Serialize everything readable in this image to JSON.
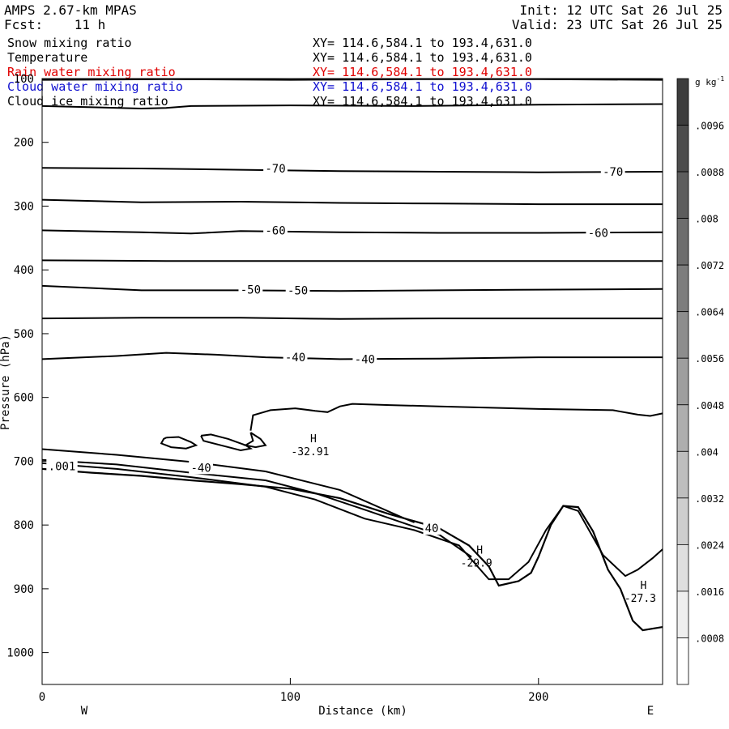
{
  "header": {
    "model": "AMPS 2.67-km MPAS",
    "forecast": "Fcst:    11 h",
    "init": "Init: 12 UTC Sat 26 Jul 25",
    "valid": "Valid: 23 UTC Sat 26 Jul 25"
  },
  "fields": [
    {
      "name": "Snow mixing ratio",
      "xy": "XY= 114.6,584.1 to 193.4,631.0",
      "color": "#000000"
    },
    {
      "name": "Temperature",
      "xy": "XY= 114.6,584.1 to 193.4,631.0",
      "color": "#000000"
    },
    {
      "name": "Rain water mixing ratio",
      "xy": "XY= 114.6,584.1 to 193.4,631.0",
      "color": "#e00000"
    },
    {
      "name": "Cloud water mixing ratio",
      "xy": "XY= 114.6,584.1 to 193.4,631.0",
      "color": "#1010d0"
    },
    {
      "name": "Cloud ice mixing ratio",
      "xy": "XY= 114.6,584.1 to 193.4,631.0",
      "color": "#000000"
    }
  ],
  "chart_data": {
    "type": "line",
    "xlabel": "Distance (km)",
    "ylabel": "Pressure (hPa)",
    "xlim": [
      0,
      250
    ],
    "ylim": [
      1050,
      100
    ],
    "xticks": [
      0,
      100,
      200
    ],
    "yticks": [
      100,
      200,
      300,
      400,
      500,
      600,
      700,
      800,
      900,
      1000
    ],
    "left_end_label": "W",
    "right_end_label": "E",
    "colorbar": {
      "unit": "g kg",
      "unit_sup": "-1",
      "ticks": [
        ".0096",
        ".0088",
        ".008",
        ".0072",
        ".0064",
        ".0056",
        ".0048",
        ".004",
        ".0032",
        ".0024",
        ".0016",
        ".0008"
      ]
    },
    "isotherms": [
      {
        "points": [
          [
            0,
            102
          ],
          [
            50,
            101
          ],
          [
            100,
            102
          ],
          [
            150,
            101
          ],
          [
            200,
            101
          ],
          [
            250,
            102
          ]
        ]
      },
      {
        "points": [
          [
            0,
            143
          ],
          [
            20,
            145
          ],
          [
            40,
            147
          ],
          [
            50,
            146
          ],
          [
            60,
            143
          ],
          [
            100,
            142
          ],
          [
            150,
            143
          ],
          [
            200,
            141
          ],
          [
            250,
            140
          ]
        ]
      },
      {
        "points": [
          [
            0,
            240
          ],
          [
            40,
            241
          ],
          [
            80,
            243
          ],
          [
            120,
            245
          ],
          [
            160,
            246
          ],
          [
            200,
            247
          ],
          [
            250,
            246
          ]
        ]
      },
      {
        "points": [
          [
            0,
            290
          ],
          [
            40,
            294
          ],
          [
            80,
            293
          ],
          [
            120,
            295
          ],
          [
            160,
            296
          ],
          [
            200,
            297
          ],
          [
            250,
            297
          ]
        ]
      },
      {
        "points": [
          [
            0,
            338
          ],
          [
            40,
            341
          ],
          [
            60,
            343
          ],
          [
            80,
            339
          ],
          [
            120,
            341
          ],
          [
            160,
            342
          ],
          [
            200,
            342
          ],
          [
            250,
            341
          ]
        ]
      },
      {
        "points": [
          [
            0,
            385
          ],
          [
            50,
            386
          ],
          [
            100,
            386
          ],
          [
            150,
            386
          ],
          [
            200,
            386
          ],
          [
            250,
            386
          ]
        ]
      },
      {
        "points": [
          [
            0,
            425
          ],
          [
            40,
            432
          ],
          [
            80,
            432
          ],
          [
            120,
            433
          ],
          [
            160,
            432
          ],
          [
            200,
            431
          ],
          [
            250,
            430
          ]
        ]
      },
      {
        "points": [
          [
            0,
            476
          ],
          [
            40,
            475
          ],
          [
            80,
            475
          ],
          [
            120,
            477
          ],
          [
            160,
            476
          ],
          [
            200,
            476
          ],
          [
            250,
            476
          ]
        ]
      },
      {
        "points": [
          [
            0,
            540
          ],
          [
            30,
            535
          ],
          [
            50,
            530
          ],
          [
            70,
            533
          ],
          [
            90,
            537
          ],
          [
            120,
            540
          ],
          [
            160,
            539
          ],
          [
            200,
            537
          ],
          [
            250,
            537
          ]
        ]
      },
      {
        "points": [
          [
            84,
            652
          ],
          [
            85,
            628
          ],
          [
            92,
            620
          ],
          [
            102,
            617
          ],
          [
            110,
            621
          ],
          [
            115,
            623
          ],
          [
            120,
            614
          ],
          [
            125,
            610
          ],
          [
            140,
            612
          ],
          [
            160,
            614
          ],
          [
            200,
            618
          ],
          [
            230,
            620
          ],
          [
            240,
            627
          ],
          [
            245,
            629
          ],
          [
            250,
            625
          ]
        ]
      },
      {
        "points": [
          [
            0,
            681
          ],
          [
            30,
            690
          ],
          [
            60,
            701
          ],
          [
            90,
            716
          ],
          [
            120,
            745
          ],
          [
            145,
            788
          ],
          [
            150,
            796
          ]
        ]
      },
      {
        "points": [
          [
            0,
            698
          ],
          [
            30,
            705
          ],
          [
            60,
            718
          ],
          [
            90,
            730
          ],
          [
            110,
            750
          ],
          [
            130,
            776
          ],
          [
            148,
            800
          ],
          [
            160,
            815
          ],
          [
            173,
            850
          ]
        ]
      },
      {
        "points": [
          [
            0,
            703
          ],
          [
            30,
            712
          ],
          [
            60,
            725
          ],
          [
            90,
            740
          ],
          [
            110,
            760
          ],
          [
            130,
            790
          ],
          [
            150,
            808
          ],
          [
            168,
            832
          ],
          [
            180,
            885
          ],
          [
            188,
            885
          ],
          [
            196,
            858
          ],
          [
            203,
            808
          ],
          [
            210,
            770
          ],
          [
            216,
            778
          ],
          [
            226,
            847
          ],
          [
            235,
            880
          ],
          [
            240,
            870
          ],
          [
            246,
            852
          ],
          [
            250,
            838
          ]
        ]
      }
    ],
    "closed_contours": [
      {
        "points": [
          [
            50,
            663
          ],
          [
            55,
            662
          ],
          [
            60,
            670
          ],
          [
            62,
            675
          ],
          [
            58,
            680
          ],
          [
            52,
            678
          ],
          [
            48,
            672
          ],
          [
            49,
            665
          ],
          [
            50,
            663
          ]
        ]
      },
      {
        "points": [
          [
            64,
            660
          ],
          [
            68,
            658
          ],
          [
            75,
            665
          ],
          [
            82,
            675
          ],
          [
            84,
            680
          ],
          [
            80,
            683
          ],
          [
            72,
            675
          ],
          [
            65,
            668
          ],
          [
            64,
            660
          ]
        ]
      },
      {
        "points": [
          [
            84,
            655
          ],
          [
            88,
            665
          ],
          [
            90,
            675
          ],
          [
            86,
            678
          ],
          [
            82,
            675
          ],
          [
            85,
            668
          ],
          [
            84,
            655
          ]
        ]
      }
    ],
    "terrain": {
      "points": [
        [
          0,
          712
        ],
        [
          20,
          718
        ],
        [
          40,
          723
        ],
        [
          60,
          730
        ],
        [
          80,
          736
        ],
        [
          100,
          743
        ],
        [
          120,
          758
        ],
        [
          140,
          783
        ],
        [
          160,
          805
        ],
        [
          172,
          832
        ],
        [
          180,
          865
        ],
        [
          184,
          895
        ],
        [
          192,
          888
        ],
        [
          197,
          875
        ],
        [
          200,
          850
        ],
        [
          205,
          800
        ],
        [
          210,
          770
        ],
        [
          216,
          772
        ],
        [
          222,
          810
        ],
        [
          228,
          870
        ],
        [
          233,
          900
        ],
        [
          238,
          950
        ],
        [
          242,
          965
        ],
        [
          250,
          960
        ]
      ]
    },
    "labels": [
      {
        "text": "-70",
        "x": 94,
        "y": 241
      },
      {
        "text": "-70",
        "x": 230,
        "y": 246
      },
      {
        "text": "-60",
        "x": 94,
        "y": 338
      },
      {
        "text": "-60",
        "x": 224,
        "y": 342
      },
      {
        "text": "-50",
        "x": 84,
        "y": 431
      },
      {
        "text": "-50",
        "x": 103,
        "y": 432
      },
      {
        "text": "-40",
        "x": 102,
        "y": 537
      },
      {
        "text": "-40",
        "x": 130,
        "y": 540
      },
      {
        "text": "-40",
        "x": 64,
        "y": 710
      },
      {
        "text": "40",
        "x": 157,
        "y": 805
      },
      {
        "text": ".001",
        "x": 8,
        "y": 708
      }
    ],
    "highs": [
      {
        "label": "H",
        "value": "-32.91",
        "x": 108,
        "y": 670
      },
      {
        "label": "H",
        "value": "-29.9",
        "x": 175,
        "y": 845
      },
      {
        "label": "H",
        "value": "-27.3",
        "x": 241,
        "y": 900
      }
    ]
  }
}
